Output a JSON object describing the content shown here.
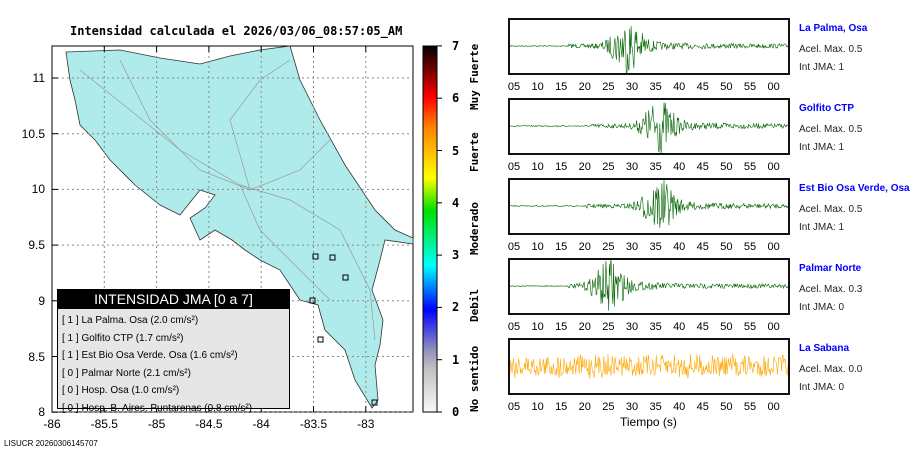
{
  "title": "Intensidad calculada el 2026/03/06_08:57:05_AM",
  "footer": "LISUCR 20260306145707",
  "map": {
    "lon_ticks": [
      "-86",
      "-85.5",
      "-85",
      "-84.5",
      "-84",
      "-83.5",
      "-83"
    ],
    "lat_ticks": [
      "11",
      "10.5",
      "10",
      "9.5",
      "9",
      "8.5",
      "8"
    ],
    "land_color": "#b0ebec"
  },
  "legend": {
    "title": "INTENSIDAD JMA [0 a 7]",
    "items": [
      "[ 1 ]  La Palma. Osa (2.0 cm/s²)",
      "[ 1 ]  Golfito CTP (1.7 cm/s²)",
      "[ 1 ]  Est Bio Osa Verde. Osa (1.6 cm/s²)",
      "[ 0 ]  Palmar Norte (2.1 cm/s²)",
      "[ 0 ]  Hosp. Osa (1.0 cm/s²)",
      "[ 0 ]  Hosp. B. Aires. Puntarenas (0.8 cm/s²)"
    ]
  },
  "colorbar": {
    "ticks": [
      "0",
      "1",
      "2",
      "3",
      "4",
      "5",
      "6",
      "7"
    ],
    "labels": [
      "No sentido",
      "Debil",
      "Moderado",
      "Fuerte",
      "Muy Fuerte"
    ]
  },
  "waveforms": {
    "time_ticks": [
      "05",
      "10",
      "15",
      "20",
      "25",
      "30",
      "35",
      "40",
      "45",
      "50",
      "55",
      "00"
    ],
    "xlabel": "Tiempo (s)",
    "stations": [
      {
        "name": "La Palma, Osa",
        "acel": "Acel. Max. 0.5",
        "jma": "Int JMA: 1",
        "color": "#006400"
      },
      {
        "name": "Golfito CTP",
        "acel": "Acel. Max. 0.5",
        "jma": "Int JMA: 1",
        "color": "#006400"
      },
      {
        "name": "Est Bio Osa Verde, Osa",
        "acel": "Acel. Max. 0.5",
        "jma": "Int JMA: 1",
        "color": "#006400"
      },
      {
        "name": "Palmar Norte",
        "acel": "Acel. Max. 0.3",
        "jma": "Int JMA: 0",
        "color": "#006400"
      },
      {
        "name": "La Sabana",
        "acel": "Acel. Max. 0.0",
        "jma": "Int JMA: 0",
        "color": "#ffa500"
      }
    ]
  }
}
